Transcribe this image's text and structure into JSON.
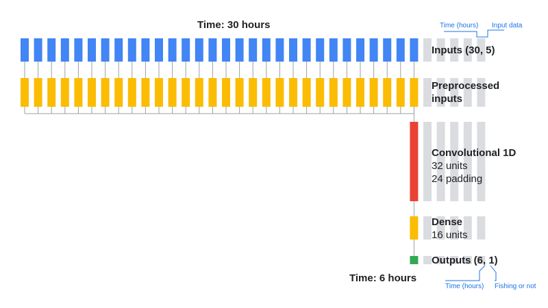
{
  "title_top": "Time: 30 hours",
  "title_bottom": "Time: 6 hours",
  "annotations": {
    "input_time": "Time (hours)",
    "input_data": "Input data",
    "output_time": "Time (hours)",
    "output_class": "Fishing or not"
  },
  "layers": {
    "inputs": {
      "label": "Inputs (30, 5)"
    },
    "preprocessed": {
      "line1": "Preprocessed",
      "line2": "inputs"
    },
    "conv": {
      "name": "Convolutional 1D",
      "units": "32 units",
      "padding": "24 padding"
    },
    "dense": {
      "name": "Dense",
      "units": "16 units"
    },
    "outputs": {
      "label": "Outputs (6, 1)"
    }
  },
  "structure": {
    "input_timesteps": 30,
    "output_timesteps": 6,
    "feature_columns": 5,
    "extra_columns": 5
  },
  "colors": {
    "inputs": "#4285f4",
    "preprocessed": "#fbbc04",
    "conv": "#ea4335",
    "dense": "#fbbc04",
    "outputs": "#34a853",
    "inactive": "#dadce0",
    "connector": "#9aa0a6",
    "annotation": "#1a73e8"
  }
}
